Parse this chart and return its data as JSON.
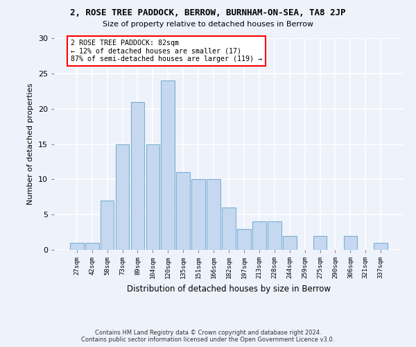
{
  "title_line1": "2, ROSE TREE PADDOCK, BERROW, BURNHAM-ON-SEA, TA8 2JP",
  "title_line2": "Size of property relative to detached houses in Berrow",
  "xlabel": "Distribution of detached houses by size in Berrow",
  "ylabel": "Number of detached properties",
  "categories": [
    "27sqm",
    "42sqm",
    "58sqm",
    "73sqm",
    "89sqm",
    "104sqm",
    "120sqm",
    "135sqm",
    "151sqm",
    "166sqm",
    "182sqm",
    "197sqm",
    "213sqm",
    "228sqm",
    "244sqm",
    "259sqm",
    "275sqm",
    "290sqm",
    "306sqm",
    "321sqm",
    "337sqm"
  ],
  "values": [
    1,
    1,
    7,
    15,
    21,
    15,
    24,
    11,
    10,
    10,
    6,
    3,
    4,
    4,
    2,
    0,
    2,
    0,
    2,
    0,
    1
  ],
  "bar_color": "#c5d8f0",
  "bar_edge_color": "#7aafd4",
  "ylim": [
    0,
    30
  ],
  "yticks": [
    0,
    5,
    10,
    15,
    20,
    25,
    30
  ],
  "annotation_text": "2 ROSE TREE PADDOCK: 82sqm\n← 12% of detached houses are smaller (17)\n87% of semi-detached houses are larger (119) →",
  "annotation_box_color": "white",
  "annotation_box_edge_color": "red",
  "footer_line1": "Contains HM Land Registry data © Crown copyright and database right 2024.",
  "footer_line2": "Contains public sector information licensed under the Open Government Licence v3.0.",
  "background_color": "#eef2fb",
  "grid_color": "white"
}
